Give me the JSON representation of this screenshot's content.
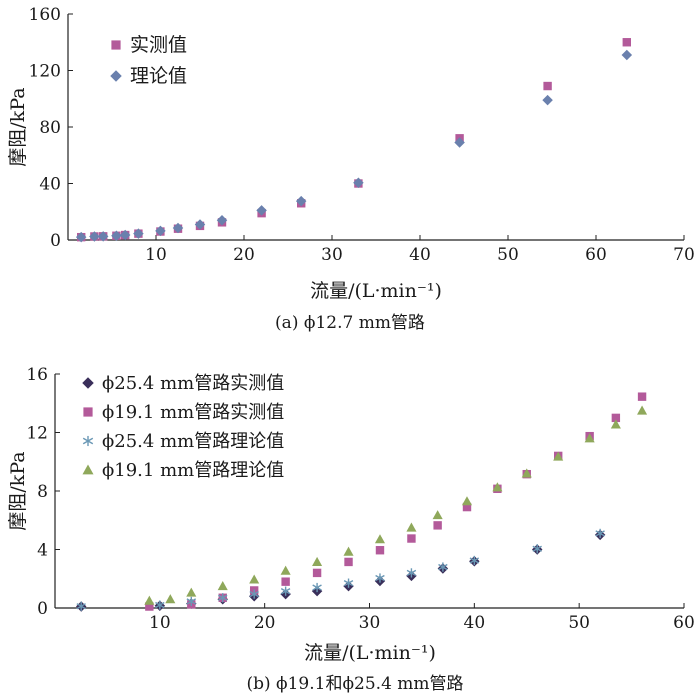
{
  "chart_data": [
    {
      "type": "scatter",
      "caption": "(a) ϕ12.7 mm管路",
      "xlabel": "流量/(L·min⁻¹)",
      "ylabel": "摩阻/kPa",
      "xlim": [
        0,
        70
      ],
      "ylim": [
        0,
        160
      ],
      "xticks": [
        "10",
        "20",
        "30",
        "40",
        "50",
        "60",
        "70"
      ],
      "yticks": [
        "0",
        "40",
        "80",
        "120",
        "160"
      ],
      "legend_position": "top-left",
      "series": [
        {
          "name": "实测值",
          "marker": "square",
          "color": "#b35a9a",
          "points": [
            [
              1.5,
              2
            ],
            [
              3,
              2.5
            ],
            [
              4,
              2.6
            ],
            [
              5.5,
              3
            ],
            [
              6.5,
              3.5
            ],
            [
              8,
              4.5
            ],
            [
              10.5,
              6
            ],
            [
              12.5,
              8
            ],
            [
              15,
              10
            ],
            [
              17.5,
              12.5
            ],
            [
              22,
              19
            ],
            [
              26.5,
              26
            ],
            [
              33,
              40
            ],
            [
              44.5,
              72
            ],
            [
              54.5,
              109
            ],
            [
              63.5,
              140
            ]
          ]
        },
        {
          "name": "理论值",
          "marker": "diamond",
          "color": "#6a80ad",
          "points": [
            [
              1.5,
              2
            ],
            [
              3,
              2.5
            ],
            [
              4,
              2.6
            ],
            [
              5.5,
              3
            ],
            [
              6.5,
              3.5
            ],
            [
              8,
              4.5
            ],
            [
              10.5,
              6.5
            ],
            [
              12.5,
              8.5
            ],
            [
              15,
              11
            ],
            [
              17.5,
              14
            ],
            [
              22,
              21
            ],
            [
              26.5,
              27.5
            ],
            [
              33,
              40.5
            ],
            [
              44.5,
              69
            ],
            [
              54.5,
              99
            ],
            [
              63.5,
              131
            ]
          ]
        }
      ]
    },
    {
      "type": "scatter",
      "caption": "(b) ϕ19.1和ϕ25.4 mm管路",
      "xlabel": "流量/(L·min⁻¹)",
      "ylabel": "摩阻/kPa",
      "xlim": [
        0,
        60
      ],
      "ylim": [
        0,
        16
      ],
      "xticks": [
        "10",
        "20",
        "30",
        "40",
        "50",
        "60"
      ],
      "yticks": [
        "0",
        "4",
        "8",
        "12",
        "16"
      ],
      "legend_position": "top-left",
      "series": [
        {
          "name": "ϕ25.4 mm管路实测值",
          "marker": "diamond",
          "color": "#3a2f5a",
          "points": [
            [
              2.5,
              0.1
            ],
            [
              10,
              0.15
            ],
            [
              13,
              0.3
            ],
            [
              16,
              0.6
            ],
            [
              19,
              0.8
            ],
            [
              22,
              0.95
            ],
            [
              25,
              1.15
            ],
            [
              28,
              1.5
            ],
            [
              31,
              1.85
            ],
            [
              34,
              2.2
            ],
            [
              37,
              2.7
            ],
            [
              40,
              3.2
            ],
            [
              46,
              4.0
            ],
            [
              52,
              5.0
            ]
          ]
        },
        {
          "name": "ϕ19.1 mm管路实测值",
          "marker": "square",
          "color": "#b35a9a",
          "points": [
            [
              9,
              0.1
            ],
            [
              13,
              0.25
            ],
            [
              16,
              0.7
            ],
            [
              19,
              1.2
            ],
            [
              22,
              1.8
            ],
            [
              25,
              2.4
            ],
            [
              28,
              3.15
            ],
            [
              31,
              3.95
            ],
            [
              34,
              4.75
            ],
            [
              36.5,
              5.65
            ],
            [
              39.3,
              6.9
            ],
            [
              42.2,
              8.15
            ],
            [
              45,
              9.15
            ],
            [
              48,
              10.4
            ],
            [
              51,
              11.75
            ],
            [
              53.5,
              13.0
            ],
            [
              56,
              14.45
            ]
          ]
        },
        {
          "name": "ϕ25.4 mm管路理论值",
          "marker": "asterisk",
          "color": "#6a98b5",
          "points": [
            [
              2.5,
              0.12
            ],
            [
              10,
              0.2
            ],
            [
              13,
              0.45
            ],
            [
              16,
              0.7
            ],
            [
              19,
              0.95
            ],
            [
              22,
              1.15
            ],
            [
              25,
              1.4
            ],
            [
              28,
              1.7
            ],
            [
              31,
              2.05
            ],
            [
              34,
              2.4
            ],
            [
              37,
              2.8
            ],
            [
              40,
              3.25
            ],
            [
              46,
              4.05
            ],
            [
              52,
              5.1
            ]
          ]
        },
        {
          "name": "ϕ19.1 mm管路理论值",
          "marker": "triangle",
          "color": "#8fa85b",
          "points": [
            [
              9,
              0.5
            ],
            [
              11,
              0.6
            ],
            [
              13,
              1.05
            ],
            [
              16,
              1.5
            ],
            [
              19,
              1.95
            ],
            [
              22,
              2.55
            ],
            [
              25,
              3.15
            ],
            [
              28,
              3.85
            ],
            [
              31,
              4.7
            ],
            [
              34,
              5.5
            ],
            [
              36.5,
              6.35
            ],
            [
              39.3,
              7.3
            ],
            [
              42.2,
              8.25
            ],
            [
              45,
              9.2
            ],
            [
              48,
              10.35
            ],
            [
              51,
              11.6
            ],
            [
              53.5,
              12.55
            ],
            [
              56,
              13.5
            ]
          ]
        }
      ]
    }
  ]
}
